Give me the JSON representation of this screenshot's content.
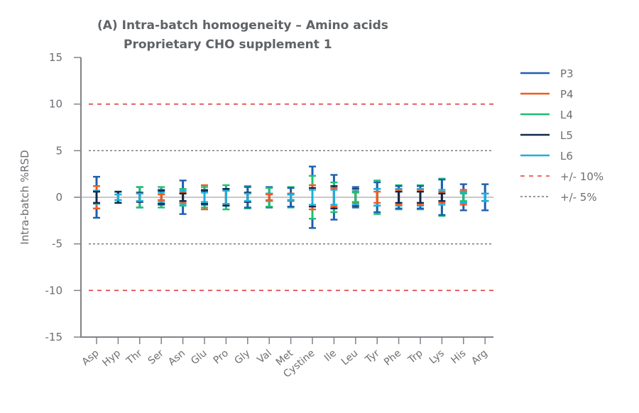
{
  "chart_data": {
    "type": "errorbar",
    "title": "(A) Intra-batch homogeneity –  Amino acids",
    "subtitle": "Proprietary CHO supplement 1",
    "xlabel": "",
    "ylabel": "Intra-batch %RSD",
    "ylim": [
      -15,
      15
    ],
    "yticks": [
      15,
      10,
      5,
      0,
      -5,
      -10,
      -15
    ],
    "grid": false,
    "legend_position": "right",
    "categories": [
      "Asp",
      "Hyp",
      "Thr",
      "Ser",
      "Asn",
      "Glu",
      "Pro",
      "Gly",
      "Val",
      "Met",
      "Cystine",
      "Ile",
      "Leu",
      "Tyr",
      "Phe",
      "Trp",
      "Lys",
      "His",
      "Arg"
    ],
    "series": [
      {
        "name": "P3",
        "color": "#1f5fb0",
        "values": [
          2.2,
          0.6,
          1.1,
          0.8,
          1.8,
          0.8,
          0.9,
          1.1,
          1.1,
          1.0,
          3.3,
          2.4,
          1.1,
          1.6,
          1.2,
          1.2,
          1.9,
          1.4,
          1.4
        ]
      },
      {
        "name": "P4",
        "color": "#f25a1e",
        "values": [
          1.2,
          0.3,
          0.4,
          0.3,
          0.5,
          1.3,
          0.7,
          0.5,
          0.3,
          0.4,
          1.3,
          1.0,
          0.6,
          0.6,
          0.8,
          0.8,
          0.6,
          0.8,
          0.4
        ]
      },
      {
        "name": "L4",
        "color": "#1fbf74",
        "values": [
          0.7,
          0.6,
          1.1,
          1.1,
          0.9,
          1.1,
          1.3,
          1.2,
          1.0,
          1.1,
          2.3,
          1.6,
          0.5,
          1.8,
          1.3,
          1.3,
          2.0,
          0.4,
          0.4
        ]
      },
      {
        "name": "L5",
        "color": "#13284d",
        "values": [
          0.6,
          0.6,
          0.5,
          0.7,
          0.4,
          0.7,
          0.9,
          0.5,
          0.4,
          0.3,
          1.0,
          1.2,
          0.9,
          0.9,
          0.6,
          0.6,
          0.4,
          0.6,
          0.4
        ]
      },
      {
        "name": "L6",
        "color": "#1ab0e0",
        "values": [
          0.7,
          0.3,
          0.4,
          0.5,
          0.7,
          0.5,
          0.7,
          0.4,
          0.4,
          0.3,
          0.8,
          0.8,
          0.8,
          0.9,
          0.9,
          0.9,
          0.8,
          0.6,
          0.4
        ]
      }
    ],
    "reference_lines": [
      {
        "name": "+/- 10%",
        "values": [
          10,
          -10
        ],
        "color": "#e03c3c",
        "style": "dashed"
      },
      {
        "name": "+/- 5%",
        "values": [
          5,
          -5
        ],
        "color": "#707378",
        "style": "dotted"
      }
    ],
    "value_note": "Each value is the symmetric error-bar half-range (+/-) around 0"
  },
  "legend": {
    "items": [
      {
        "label": "P3",
        "color": "#1f5fb0",
        "style": "solid"
      },
      {
        "label": "P4",
        "color": "#f25a1e",
        "style": "solid"
      },
      {
        "label": "L4",
        "color": "#1fbf74",
        "style": "solid"
      },
      {
        "label": "L5",
        "color": "#13284d",
        "style": "solid"
      },
      {
        "label": "L6",
        "color": "#1ab0e0",
        "style": "solid"
      },
      {
        "label": "+/- 10%",
        "color": "#e03c3c",
        "style": "dashed"
      },
      {
        "label": "+/- 5%",
        "color": "#707378",
        "style": "dotted"
      }
    ]
  }
}
